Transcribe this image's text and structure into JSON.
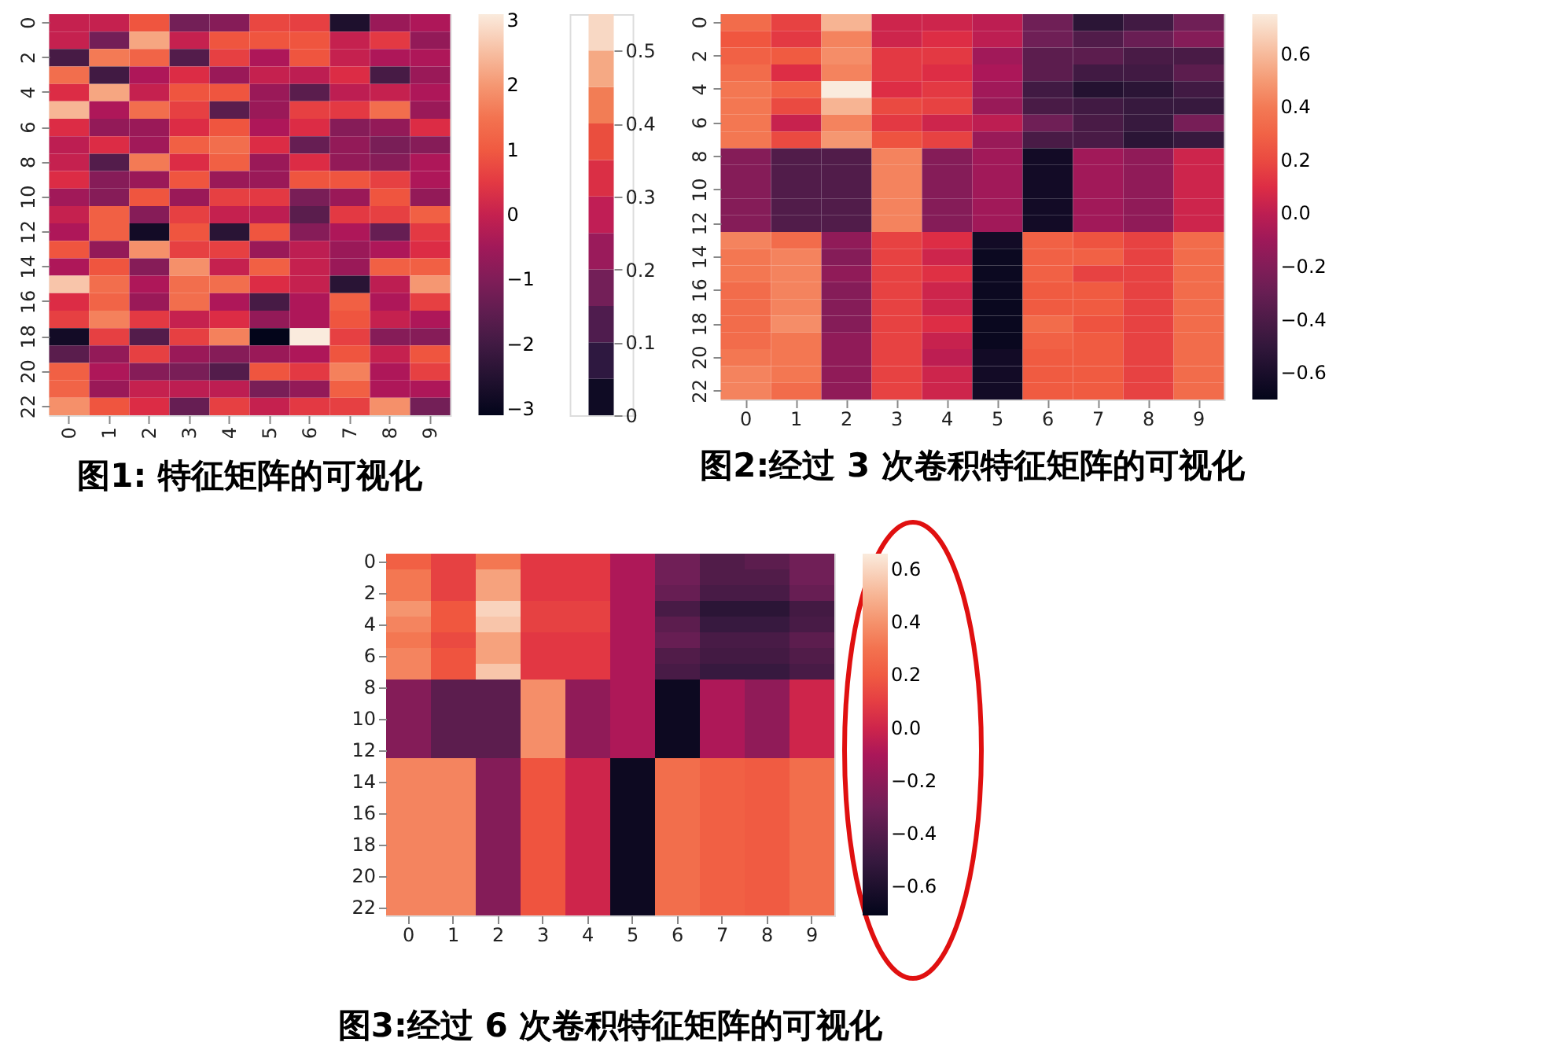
{
  "chart_data": [
    {
      "type": "heatmap",
      "title": "图1: 特征矩阵的可视化",
      "categories": [
        "0",
        "1",
        "2",
        "3",
        "4",
        "5",
        "6",
        "7",
        "8",
        "9"
      ],
      "y_categories": [
        "0",
        null,
        "2",
        null,
        "4",
        null,
        "6",
        null,
        "8",
        null,
        "10",
        null,
        "12",
        null,
        "14",
        null,
        "16",
        null,
        "18",
        null,
        "20",
        null,
        "22"
      ],
      "clim": [
        -3.1,
        3.1
      ],
      "cticks": [
        -3,
        -2,
        -1,
        0,
        1,
        2,
        3
      ],
      "cells": [
        [
          0.0,
          0.0,
          0.9,
          -1.2,
          -0.9,
          0.7,
          0.6,
          -2.6,
          -0.6,
          -0.3
        ],
        [
          0.0,
          -1.2,
          2.2,
          0.0,
          0.9,
          0.9,
          0.9,
          0.0,
          0.5,
          -0.7
        ],
        [
          -1.9,
          1.6,
          1.2,
          -1.7,
          0.6,
          -0.3,
          0.9,
          0.0,
          -0.3,
          -0.3
        ],
        [
          1.4,
          -2.0,
          -0.3,
          0.3,
          -0.6,
          0.0,
          -0.1,
          0.3,
          -1.9,
          -0.6
        ],
        [
          0.3,
          2.2,
          0.0,
          0.9,
          0.9,
          -0.6,
          -1.6,
          -0.1,
          0.0,
          -0.3
        ],
        [
          2.4,
          -0.3,
          1.4,
          0.6,
          -1.6,
          -0.6,
          0.6,
          0.5,
          1.4,
          -0.6
        ],
        [
          0.3,
          -0.7,
          -0.6,
          0.3,
          0.9,
          -0.3,
          0.3,
          -0.9,
          -0.7,
          0.3
        ],
        [
          -0.1,
          0.3,
          -0.5,
          1.1,
          1.4,
          0.3,
          -1.4,
          -0.7,
          -1.1,
          -0.9
        ],
        [
          0.0,
          -1.7,
          1.6,
          0.3,
          1.1,
          -0.6,
          0.3,
          -0.7,
          -0.9,
          -0.3
        ],
        [
          0.3,
          -0.9,
          -0.6,
          0.9,
          -0.6,
          -0.6,
          0.9,
          0.9,
          0.6,
          -0.3
        ],
        [
          -0.5,
          -0.9,
          0.9,
          -0.6,
          0.6,
          0.5,
          -1.1,
          -0.6,
          0.9,
          -0.7
        ],
        [
          0.0,
          1.1,
          -0.9,
          0.6,
          0.0,
          -0.1,
          -1.6,
          0.5,
          0.6,
          1.1
        ],
        [
          -0.3,
          1.1,
          -2.8,
          0.9,
          -2.4,
          0.9,
          -0.9,
          -0.3,
          -1.4,
          0.5
        ],
        [
          0.9,
          -0.7,
          1.9,
          0.6,
          0.6,
          -0.6,
          -0.1,
          -0.6,
          -0.3,
          0.3
        ],
        [
          -0.3,
          0.9,
          -0.9,
          1.9,
          0.0,
          1.1,
          0.0,
          -0.6,
          1.1,
          1.1
        ],
        [
          2.6,
          1.4,
          -0.3,
          1.4,
          1.4,
          0.3,
          0.0,
          -2.4,
          -0.1,
          2.0
        ],
        [
          0.3,
          1.2,
          -0.6,
          1.4,
          -0.3,
          -1.9,
          -0.3,
          1.1,
          -0.3,
          0.6
        ],
        [
          0.6,
          1.7,
          0.5,
          0.0,
          0.3,
          -0.7,
          -0.3,
          0.9,
          0.0,
          -0.3
        ],
        [
          -2.8,
          0.6,
          -1.7,
          0.6,
          1.7,
          -3.1,
          3.1,
          0.6,
          -0.9,
          -0.9
        ],
        [
          -1.6,
          -0.7,
          0.6,
          -0.6,
          -0.9,
          -0.6,
          -0.3,
          0.9,
          0.0,
          0.9
        ],
        [
          1.1,
          -0.3,
          -0.9,
          -1.1,
          -1.7,
          0.9,
          0.5,
          1.7,
          -0.3,
          0.6
        ],
        [
          1.2,
          -0.6,
          0.0,
          -0.1,
          -0.1,
          -1.1,
          -0.7,
          1.1,
          -0.3,
          -0.3
        ],
        [
          1.9,
          0.9,
          0.3,
          -1.4,
          0.6,
          0.0,
          0.5,
          0.6,
          1.9,
          -1.2
        ]
      ]
    },
    {
      "type": "bar",
      "categories": [
        null
      ],
      "stacked": true,
      "ylim": [
        0,
        0.55
      ],
      "yticks": [
        0,
        0.1,
        0.2,
        0.3,
        0.4,
        0.5
      ],
      "series": [
        {
          "color": "#0f0b24",
          "values": [
            0.05
          ]
        },
        {
          "color": "#2e1840",
          "values": [
            0.05
          ]
        },
        {
          "color": "#4f1c4e",
          "values": [
            0.05
          ]
        },
        {
          "color": "#731f58",
          "values": [
            0.05
          ]
        },
        {
          "color": "#9a1b5b",
          "values": [
            0.05
          ]
        },
        {
          "color": "#c01e55",
          "values": [
            0.05
          ]
        },
        {
          "color": "#da2f45",
          "values": [
            0.05
          ]
        },
        {
          "color": "#ea4e3e",
          "values": [
            0.05
          ]
        },
        {
          "color": "#f27d55",
          "values": [
            0.05
          ]
        },
        {
          "color": "#f5a984",
          "values": [
            0.05
          ]
        },
        {
          "color": "#f8d8c4",
          "values": [
            0.05
          ]
        }
      ]
    },
    {
      "type": "heatmap",
      "title": "图2:经过 3 次卷积特征矩阵的可视化",
      "categories": [
        "0",
        "1",
        "2",
        "3",
        "4",
        "5",
        "6",
        "7",
        "8",
        "9"
      ],
      "y_categories": [
        "0",
        null,
        "2",
        null,
        "4",
        null,
        "6",
        null,
        "8",
        null,
        "10",
        null,
        "12",
        null,
        "14",
        null,
        "16",
        null,
        "18",
        null,
        "20",
        null,
        "22"
      ],
      "clim": [
        -0.7,
        0.75
      ],
      "cticks": [
        -0.6,
        -0.4,
        -0.2,
        {
          "value": 0,
          "label": "0.0"
        },
        0.2,
        0.4,
        0.6
      ],
      "cells": [
        [
          0.34,
          0.17,
          0.58,
          0.05,
          0.05,
          0.0,
          -0.27,
          -0.53,
          -0.44,
          -0.27
        ],
        [
          0.24,
          0.14,
          0.43,
          0.05,
          0.1,
          0.0,
          -0.27,
          -0.38,
          -0.29,
          -0.19
        ],
        [
          0.29,
          0.26,
          0.46,
          0.14,
          0.14,
          -0.09,
          -0.34,
          -0.34,
          -0.41,
          -0.41
        ],
        [
          0.34,
          0.1,
          0.43,
          0.14,
          0.1,
          -0.05,
          -0.34,
          -0.44,
          -0.44,
          -0.34
        ],
        [
          0.39,
          0.29,
          0.75,
          0.1,
          0.14,
          -0.09,
          -0.44,
          -0.56,
          -0.53,
          -0.44
        ],
        [
          0.39,
          0.2,
          0.58,
          0.2,
          0.17,
          -0.12,
          -0.41,
          -0.44,
          -0.48,
          -0.48
        ],
        [
          0.39,
          0.03,
          0.43,
          0.14,
          0.05,
          0.0,
          -0.27,
          -0.41,
          -0.48,
          -0.24
        ],
        [
          0.39,
          0.2,
          0.49,
          0.23,
          0.17,
          -0.12,
          -0.41,
          -0.41,
          -0.53,
          -0.48
        ],
        [
          -0.19,
          -0.38,
          -0.38,
          0.43,
          -0.19,
          -0.09,
          -0.63,
          -0.09,
          -0.15,
          0.05
        ],
        [
          -0.19,
          -0.38,
          -0.38,
          0.43,
          -0.19,
          -0.09,
          -0.63,
          -0.09,
          -0.15,
          0.05
        ],
        [
          -0.19,
          -0.38,
          -0.38,
          0.43,
          -0.19,
          -0.09,
          -0.63,
          -0.09,
          -0.15,
          0.05
        ],
        [
          -0.19,
          -0.38,
          -0.38,
          0.43,
          -0.19,
          -0.09,
          -0.63,
          -0.09,
          -0.15,
          0.05
        ],
        [
          -0.19,
          -0.38,
          -0.38,
          0.43,
          -0.19,
          -0.09,
          -0.63,
          -0.09,
          -0.15,
          0.05
        ],
        [
          0.43,
          0.34,
          -0.15,
          0.17,
          0.1,
          -0.63,
          0.29,
          0.23,
          0.17,
          0.34
        ],
        [
          0.39,
          0.43,
          -0.19,
          0.17,
          0.05,
          -0.66,
          0.29,
          0.29,
          0.17,
          0.34
        ],
        [
          0.39,
          0.43,
          -0.15,
          0.17,
          0.11,
          -0.66,
          0.29,
          0.17,
          0.17,
          0.34
        ],
        [
          0.34,
          0.43,
          -0.19,
          0.17,
          0.05,
          -0.66,
          0.26,
          0.26,
          0.17,
          0.34
        ],
        [
          0.34,
          0.43,
          -0.19,
          0.17,
          0.05,
          -0.67,
          0.26,
          0.26,
          0.17,
          0.34
        ],
        [
          0.34,
          0.46,
          -0.19,
          0.17,
          0.1,
          -0.67,
          0.34,
          0.23,
          0.17,
          0.34
        ],
        [
          0.34,
          0.39,
          -0.15,
          0.17,
          0.03,
          -0.67,
          0.29,
          0.26,
          0.17,
          0.34
        ],
        [
          0.39,
          0.39,
          -0.15,
          0.17,
          0.0,
          -0.63,
          0.26,
          0.26,
          0.17,
          0.34
        ],
        [
          0.43,
          0.39,
          -0.15,
          0.17,
          0.05,
          -0.63,
          0.26,
          0.26,
          0.17,
          0.34
        ],
        [
          0.43,
          0.34,
          -0.15,
          0.17,
          0.05,
          -0.63,
          0.26,
          0.26,
          0.17,
          0.34
        ]
      ]
    },
    {
      "type": "heatmap",
      "title": "图3:经过 6 次卷积特征矩阵的可视化",
      "categories": [
        "0",
        "1",
        "2",
        "3",
        "4",
        "5",
        "6",
        "7",
        "8",
        "9"
      ],
      "y_categories": [
        "0",
        null,
        "2",
        null,
        "4",
        null,
        "6",
        null,
        "8",
        null,
        "10",
        null,
        "12",
        null,
        "14",
        null,
        "16",
        null,
        "18",
        null,
        "20",
        null,
        "22"
      ],
      "clim": [
        -0.71,
        0.66
      ],
      "cticks": [
        -0.6,
        -0.4,
        -0.2,
        {
          "value": 0,
          "label": "0.0"
        },
        0.2,
        0.4,
        0.6
      ],
      "cells": [
        [
          0.22,
          0.11,
          0.32,
          0.08,
          0.08,
          -0.09,
          -0.3,
          -0.41,
          -0.37,
          -0.3
        ],
        [
          0.32,
          0.11,
          0.45,
          0.08,
          0.08,
          -0.09,
          -0.3,
          -0.41,
          -0.41,
          -0.3
        ],
        [
          0.32,
          0.11,
          0.45,
          0.08,
          0.08,
          -0.09,
          -0.33,
          -0.44,
          -0.44,
          -0.33
        ],
        [
          0.41,
          0.18,
          0.59,
          0.11,
          0.11,
          -0.09,
          -0.44,
          -0.55,
          -0.55,
          -0.46
        ],
        [
          0.36,
          0.18,
          0.55,
          0.11,
          0.11,
          -0.09,
          -0.37,
          -0.5,
          -0.5,
          -0.44
        ],
        [
          0.32,
          0.14,
          0.45,
          0.08,
          0.08,
          -0.09,
          -0.33,
          -0.44,
          -0.44,
          -0.37
        ],
        [
          0.36,
          0.17,
          0.45,
          0.08,
          0.08,
          -0.09,
          -0.41,
          -0.46,
          -0.46,
          -0.41
        ],
        [
          0.36,
          0.17,
          0.55,
          0.08,
          0.08,
          -0.09,
          -0.44,
          -0.5,
          -0.5,
          -0.44
        ],
        [
          -0.23,
          -0.37,
          -0.37,
          0.39,
          -0.19,
          -0.09,
          -0.67,
          -0.09,
          -0.19,
          0.0
        ],
        [
          -0.23,
          -0.37,
          -0.37,
          0.39,
          -0.19,
          -0.09,
          -0.67,
          -0.09,
          -0.19,
          0.0
        ],
        [
          -0.23,
          -0.37,
          -0.37,
          0.39,
          -0.19,
          -0.09,
          -0.67,
          -0.09,
          -0.19,
          0.0
        ],
        [
          -0.23,
          -0.37,
          -0.37,
          0.39,
          -0.19,
          -0.09,
          -0.67,
          -0.09,
          -0.19,
          0.0
        ],
        [
          -0.23,
          -0.37,
          -0.37,
          0.39,
          -0.19,
          -0.09,
          -0.67,
          -0.09,
          -0.19,
          0.0
        ],
        [
          0.36,
          0.36,
          -0.23,
          0.17,
          0.0,
          -0.67,
          0.28,
          0.22,
          0.2,
          0.28
        ],
        [
          0.36,
          0.36,
          -0.23,
          0.17,
          0.0,
          -0.67,
          0.28,
          0.22,
          0.2,
          0.28
        ],
        [
          0.36,
          0.36,
          -0.23,
          0.17,
          0.0,
          -0.67,
          0.28,
          0.22,
          0.2,
          0.28
        ],
        [
          0.36,
          0.36,
          -0.23,
          0.17,
          0.0,
          -0.67,
          0.28,
          0.22,
          0.2,
          0.28
        ],
        [
          0.36,
          0.36,
          -0.23,
          0.17,
          0.0,
          -0.67,
          0.28,
          0.22,
          0.2,
          0.28
        ],
        [
          0.36,
          0.36,
          -0.23,
          0.17,
          0.0,
          -0.67,
          0.28,
          0.22,
          0.2,
          0.28
        ],
        [
          0.36,
          0.36,
          -0.23,
          0.17,
          0.0,
          -0.67,
          0.28,
          0.22,
          0.2,
          0.28
        ],
        [
          0.36,
          0.36,
          -0.23,
          0.17,
          0.0,
          -0.67,
          0.28,
          0.22,
          0.2,
          0.28
        ],
        [
          0.36,
          0.36,
          -0.23,
          0.17,
          0.0,
          -0.67,
          0.28,
          0.22,
          0.2,
          0.28
        ],
        [
          0.36,
          0.36,
          -0.23,
          0.17,
          0.0,
          -0.67,
          0.28,
          0.22,
          0.2,
          0.28
        ]
      ]
    }
  ]
}
